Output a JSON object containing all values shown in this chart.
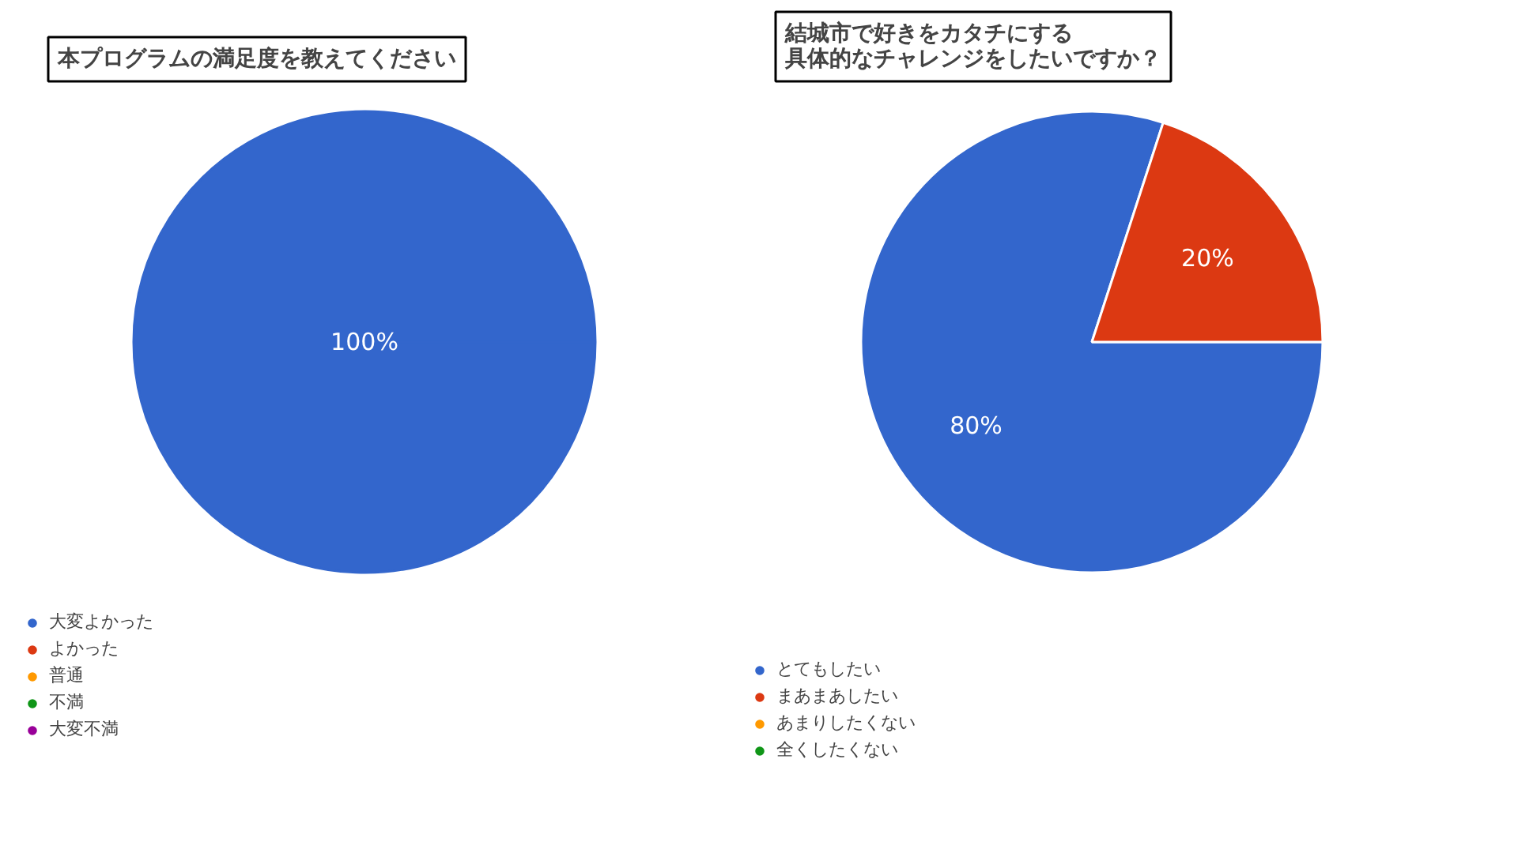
{
  "chart_data": [
    {
      "type": "pie",
      "title": "本プログラムの満足度を教えてください",
      "categories": [
        "大変よかった",
        "よかった",
        "普通",
        "不満",
        "大変不満"
      ],
      "values": [
        100,
        0,
        0,
        0,
        0
      ],
      "value_labels": [
        "100%",
        null,
        null,
        null,
        null
      ],
      "colors": [
        "#3366cc",
        "#dc3912",
        "#ff9900",
        "#109618",
        "#990099"
      ],
      "legend": "bottom left"
    },
    {
      "type": "pie",
      "title": "結城市で好きをカタチにする具体的なチャレンジをしたいですか？",
      "categories": [
        "とてもしたい",
        "まあまあしたい",
        "あまりしたくない",
        "全くしたくない"
      ],
      "values": [
        80,
        20,
        0,
        0
      ],
      "value_labels": [
        "80%",
        "20%",
        null,
        null
      ],
      "colors": [
        "#3366cc",
        "#dc3912",
        "#ff9900",
        "#109618"
      ],
      "legend": "bottom left"
    }
  ]
}
